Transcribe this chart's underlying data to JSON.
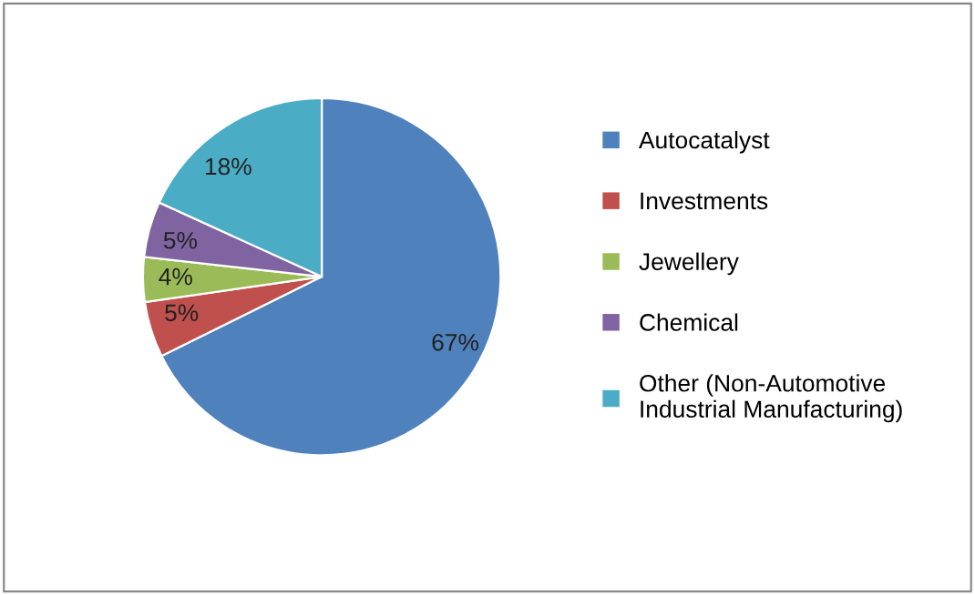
{
  "chart_data": {
    "type": "pie",
    "categories": [
      "Autocatalyst",
      "Investments",
      "Jewellery",
      "Chemical",
      "Other (Non-Automotive\nIndustrial Manufacturing)"
    ],
    "values": [
      67,
      5,
      4,
      5,
      18
    ],
    "value_labels": [
      "67%",
      "5%",
      "4%",
      "5%",
      "18%"
    ],
    "colors": [
      "#4f81bd",
      "#c0504d",
      "#9bbb59",
      "#8064a2",
      "#4bacc6"
    ],
    "legend": "right"
  }
}
